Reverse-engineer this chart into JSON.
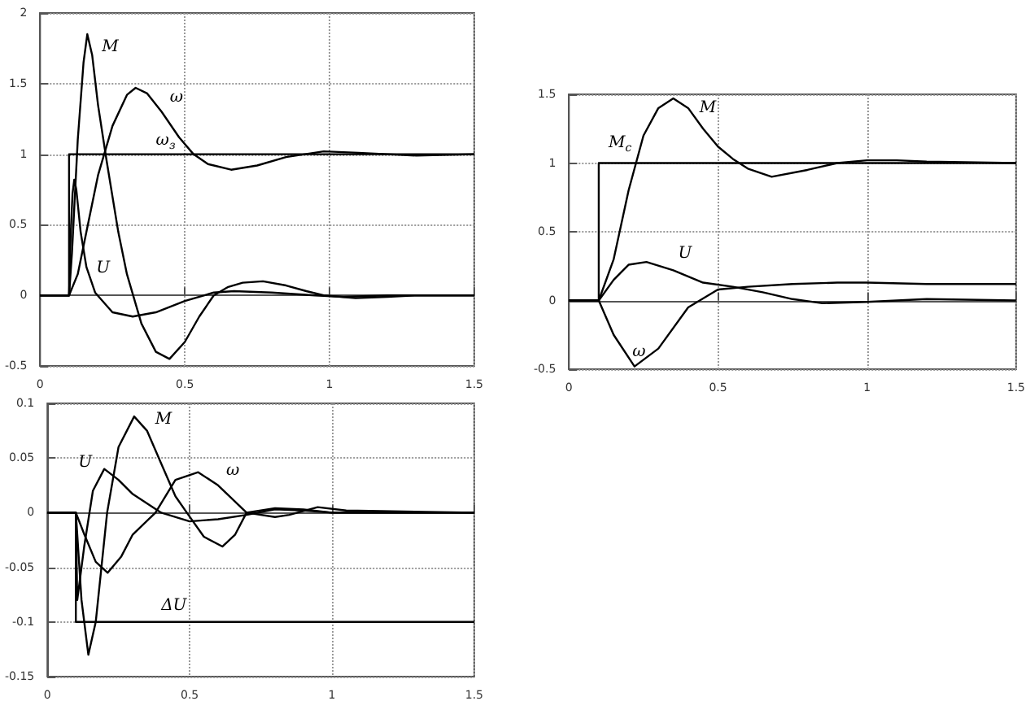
{
  "chart_data": [
    {
      "type": "line",
      "xlim": [
        0,
        1.5
      ],
      "xticks": [
        0,
        0.5,
        1,
        1.5
      ],
      "ylim": [
        -0.5,
        2
      ],
      "yticks": [
        -0.5,
        0,
        0.5,
        1,
        1.5,
        2
      ],
      "grid": true,
      "line_style": "solid",
      "series": [
        {
          "name": "M",
          "color": "#000000",
          "x": [
            0,
            0.1,
            0.11,
            0.13,
            0.15,
            0.163,
            0.18,
            0.2,
            0.23,
            0.27,
            0.3,
            0.35,
            0.4,
            0.447,
            0.5,
            0.55,
            0.6,
            0.65,
            0.7,
            0.77,
            0.85,
            0.92,
            0.98,
            1.09,
            1.2,
            1.3,
            1.5
          ],
          "values": [
            0,
            0,
            0.3,
            1.1,
            1.65,
            1.85,
            1.7,
            1.35,
            0.95,
            0.45,
            0.15,
            -0.2,
            -0.4,
            -0.45,
            -0.33,
            -0.15,
            0,
            0.06,
            0.09,
            0.1,
            0.07,
            0.03,
            0,
            -0.02,
            -0.01,
            0,
            0
          ]
        },
        {
          "name": "ω",
          "color": "#000000",
          "x": [
            0,
            0.1,
            0.13,
            0.16,
            0.2,
            0.25,
            0.3,
            0.33,
            0.37,
            0.42,
            0.48,
            0.53,
            0.58,
            0.66,
            0.75,
            0.85,
            0.98,
            1.1,
            1.2,
            1.3,
            1.5
          ],
          "values": [
            0,
            0,
            0.15,
            0.45,
            0.85,
            1.2,
            1.42,
            1.47,
            1.43,
            1.3,
            1.12,
            1.0,
            0.93,
            0.89,
            0.92,
            0.98,
            1.02,
            1.01,
            1.0,
            0.99,
            1.0
          ]
        },
        {
          "name": "ω$_{з}$",
          "color": "#000000",
          "x": [
            0,
            0.1,
            0.1,
            0.4,
            1.5
          ],
          "values": [
            0,
            0,
            1,
            1,
            1
          ]
        },
        {
          "name": "U",
          "color": "#000000",
          "x": [
            0,
            0.1,
            0.105,
            0.112,
            0.118,
            0.125,
            0.14,
            0.16,
            0.19,
            0.25,
            0.32,
            0.4,
            0.5,
            0.6,
            0.67,
            0.8,
            0.95,
            1.05,
            1.2,
            1.5
          ],
          "values": [
            0,
            0,
            0.4,
            0.72,
            0.82,
            0.75,
            0.45,
            0.2,
            0.02,
            -0.12,
            -0.15,
            -0.12,
            -0.04,
            0.02,
            0.03,
            0.02,
            0,
            -0.01,
            0,
            0
          ]
        }
      ]
    },
    {
      "type": "line",
      "xlim": [
        0,
        1.5
      ],
      "xticks": [
        0,
        0.5,
        1,
        1.5
      ],
      "ylim": [
        -0.5,
        1.5
      ],
      "yticks": [
        -0.5,
        0,
        0.5,
        1,
        1.5
      ],
      "grid": true,
      "line_style": "solid",
      "series": [
        {
          "name": "M",
          "color": "#000000",
          "x": [
            0,
            0.1,
            0.15,
            0.2,
            0.25,
            0.3,
            0.35,
            0.4,
            0.45,
            0.5,
            0.55,
            0.6,
            0.68,
            0.8,
            0.9,
            1.0,
            1.1,
            1.2,
            1.5
          ],
          "values": [
            0,
            0,
            0.3,
            0.8,
            1.2,
            1.4,
            1.47,
            1.4,
            1.25,
            1.12,
            1.03,
            0.96,
            0.9,
            0.95,
            1.0,
            1.02,
            1.02,
            1.01,
            1.0
          ]
        },
        {
          "name": "M$_{c}$",
          "color": "#000000",
          "x": [
            0,
            0.1,
            0.1,
            1.5
          ],
          "values": [
            0,
            0,
            1,
            1
          ]
        },
        {
          "name": "U",
          "color": "#000000",
          "x": [
            0,
            0.1,
            0.15,
            0.2,
            0.26,
            0.35,
            0.45,
            0.55,
            0.65,
            0.75,
            0.85,
            1.0,
            1.2,
            1.5
          ],
          "values": [
            0,
            0,
            0.15,
            0.26,
            0.28,
            0.22,
            0.13,
            0.1,
            0.06,
            0.01,
            -0.02,
            -0.01,
            0.01,
            0
          ]
        },
        {
          "name": "ω",
          "color": "#000000",
          "x": [
            0,
            0.1,
            0.15,
            0.22,
            0.3,
            0.4,
            0.5,
            0.6,
            0.75,
            0.9,
            1.0,
            1.2,
            1.5
          ],
          "values": [
            0,
            0,
            -0.25,
            -0.48,
            -0.35,
            -0.05,
            0.08,
            0.1,
            0.12,
            0.13,
            0.13,
            0.12,
            0.12
          ]
        }
      ]
    },
    {
      "type": "line",
      "xlim": [
        0,
        1.5
      ],
      "xticks": [
        0,
        0.5,
        1,
        1.5
      ],
      "ylim": [
        -0.15,
        0.1
      ],
      "yticks": [
        -0.15,
        -0.1,
        -0.05,
        0,
        0.05,
        0.1
      ],
      "grid": true,
      "line_style": "solid",
      "series": [
        {
          "name": "M",
          "color": "#000000",
          "x": [
            0,
            0.1,
            0.12,
            0.144,
            0.17,
            0.21,
            0.25,
            0.305,
            0.35,
            0.4,
            0.45,
            0.49,
            0.55,
            0.615,
            0.66,
            0.7,
            0.8,
            0.9,
            1.0,
            1.5
          ],
          "values": [
            0,
            0,
            -0.08,
            -0.13,
            -0.1,
            0,
            0.06,
            0.088,
            0.075,
            0.045,
            0.015,
            0,
            -0.022,
            -0.031,
            -0.02,
            0,
            0.004,
            0.003,
            0,
            0
          ]
        },
        {
          "name": "U",
          "color": "#000000",
          "x": [
            0,
            0.1,
            0.105,
            0.13,
            0.16,
            0.2,
            0.25,
            0.3,
            0.4,
            0.5,
            0.6,
            0.7,
            0.8,
            0.9,
            1.0,
            1.5
          ],
          "values": [
            0,
            0,
            -0.08,
            -0.03,
            0.02,
            0.04,
            0.03,
            0.017,
            0,
            -0.008,
            -0.006,
            -0.002,
            0.003,
            0.002,
            0,
            0
          ]
        },
        {
          "name": "ω",
          "color": "#000000",
          "x": [
            0,
            0.1,
            0.13,
            0.17,
            0.212,
            0.26,
            0.3,
            0.38,
            0.45,
            0.53,
            0.6,
            0.7,
            0.8,
            0.85,
            0.95,
            1.05,
            1.5
          ],
          "values": [
            0,
            0,
            -0.02,
            -0.045,
            -0.055,
            -0.04,
            -0.02,
            0,
            0.03,
            0.037,
            0.025,
            0,
            -0.004,
            -0.002,
            0.005,
            0.002,
            0
          ]
        },
        {
          "name": "ΔU",
          "color": "#000000",
          "x": [
            0,
            0.1,
            0.1,
            0.4,
            1.5
          ],
          "values": [
            0,
            0,
            -0.1,
            -0.1,
            -0.1
          ]
        }
      ]
    }
  ]
}
